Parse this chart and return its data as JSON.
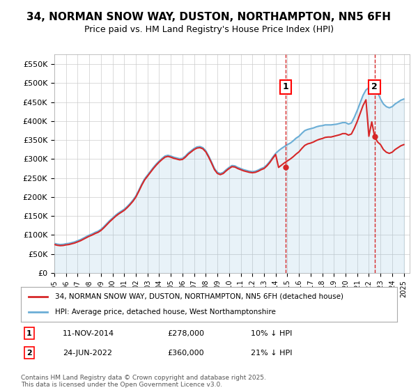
{
  "title": "34, NORMAN SNOW WAY, DUSTON, NORTHAMPTON, NN5 6FH",
  "subtitle": "Price paid vs. HM Land Registry's House Price Index (HPI)",
  "ylabel_ticks": [
    "£0",
    "£50K",
    "£100K",
    "£150K",
    "£200K",
    "£250K",
    "£300K",
    "£350K",
    "£400K",
    "£450K",
    "£500K",
    "£550K"
  ],
  "ylim": [
    0,
    575000
  ],
  "hpi_color": "#6baed6",
  "price_color": "#d62728",
  "grid_color": "#cccccc",
  "background_color": "#ffffff",
  "sale1_year": 2014.87,
  "sale1_price": 278000,
  "sale1_label": "1",
  "sale1_date": "11-NOV-2014",
  "sale1_pct": "10% ↓ HPI",
  "sale2_year": 2022.48,
  "sale2_price": 360000,
  "sale2_label": "2",
  "sale2_date": "24-JUN-2022",
  "sale2_pct": "21% ↓ HPI",
  "legend_line1": "34, NORMAN SNOW WAY, DUSTON, NORTHAMPTON, NN5 6FH (detached house)",
  "legend_line2": "HPI: Average price, detached house, West Northamptonshire",
  "footnote": "Contains HM Land Registry data © Crown copyright and database right 2025.\nThis data is licensed under the Open Government Licence v3.0.",
  "hpi_data": {
    "years": [
      1995.0,
      1995.25,
      1995.5,
      1995.75,
      1996.0,
      1996.25,
      1996.5,
      1996.75,
      1997.0,
      1997.25,
      1997.5,
      1997.75,
      1998.0,
      1998.25,
      1998.5,
      1998.75,
      1999.0,
      1999.25,
      1999.5,
      1999.75,
      2000.0,
      2000.25,
      2000.5,
      2000.75,
      2001.0,
      2001.25,
      2001.5,
      2001.75,
      2002.0,
      2002.25,
      2002.5,
      2002.75,
      2003.0,
      2003.25,
      2003.5,
      2003.75,
      2004.0,
      2004.25,
      2004.5,
      2004.75,
      2005.0,
      2005.25,
      2005.5,
      2005.75,
      2006.0,
      2006.25,
      2006.5,
      2006.75,
      2007.0,
      2007.25,
      2007.5,
      2007.75,
      2008.0,
      2008.25,
      2008.5,
      2008.75,
      2009.0,
      2009.25,
      2009.5,
      2009.75,
      2010.0,
      2010.25,
      2010.5,
      2010.75,
      2011.0,
      2011.25,
      2011.5,
      2011.75,
      2012.0,
      2012.25,
      2012.5,
      2012.75,
      2013.0,
      2013.25,
      2013.5,
      2013.75,
      2014.0,
      2014.25,
      2014.5,
      2014.75,
      2015.0,
      2015.25,
      2015.5,
      2015.75,
      2016.0,
      2016.25,
      2016.5,
      2016.75,
      2017.0,
      2017.25,
      2017.5,
      2017.75,
      2018.0,
      2018.25,
      2018.5,
      2018.75,
      2019.0,
      2019.25,
      2019.5,
      2019.75,
      2020.0,
      2020.25,
      2020.5,
      2020.75,
      2021.0,
      2021.25,
      2021.5,
      2021.75,
      2022.0,
      2022.25,
      2022.5,
      2022.75,
      2023.0,
      2023.25,
      2023.5,
      2023.75,
      2024.0,
      2024.25,
      2024.5,
      2024.75,
      2025.0
    ],
    "values": [
      78000,
      76000,
      75000,
      75500,
      77000,
      78000,
      80000,
      82000,
      85000,
      88000,
      92000,
      96000,
      100000,
      103000,
      107000,
      110000,
      115000,
      122000,
      130000,
      138000,
      145000,
      152000,
      158000,
      163000,
      168000,
      175000,
      183000,
      192000,
      203000,
      218000,
      234000,
      248000,
      258000,
      268000,
      278000,
      287000,
      295000,
      302000,
      308000,
      310000,
      308000,
      305000,
      303000,
      301000,
      302000,
      308000,
      316000,
      322000,
      328000,
      332000,
      333000,
      330000,
      322000,
      308000,
      292000,
      275000,
      265000,
      262000,
      265000,
      272000,
      278000,
      283000,
      282000,
      278000,
      275000,
      272000,
      270000,
      268000,
      267000,
      268000,
      271000,
      275000,
      278000,
      285000,
      294000,
      305000,
      315000,
      322000,
      328000,
      333000,
      338000,
      342000,
      348000,
      355000,
      360000,
      368000,
      375000,
      378000,
      380000,
      382000,
      385000,
      387000,
      388000,
      390000,
      390000,
      390000,
      391000,
      392000,
      394000,
      396000,
      396000,
      392000,
      395000,
      410000,
      428000,
      448000,
      468000,
      482000,
      488000,
      490000,
      488000,
      476000,
      458000,
      445000,
      438000,
      435000,
      438000,
      445000,
      450000,
      455000,
      458000
    ]
  },
  "price_data": {
    "years": [
      1995.0,
      1995.25,
      1995.5,
      1995.75,
      1996.0,
      1996.25,
      1996.5,
      1996.75,
      1997.0,
      1997.25,
      1997.5,
      1997.75,
      1998.0,
      1998.25,
      1998.5,
      1998.75,
      1999.0,
      1999.25,
      1999.5,
      1999.75,
      2000.0,
      2000.25,
      2000.5,
      2000.75,
      2001.0,
      2001.25,
      2001.5,
      2001.75,
      2002.0,
      2002.25,
      2002.5,
      2002.75,
      2003.0,
      2003.25,
      2003.5,
      2003.75,
      2004.0,
      2004.25,
      2004.5,
      2004.75,
      2005.0,
      2005.25,
      2005.5,
      2005.75,
      2006.0,
      2006.25,
      2006.5,
      2006.75,
      2007.0,
      2007.25,
      2007.5,
      2007.75,
      2008.0,
      2008.25,
      2008.5,
      2008.75,
      2009.0,
      2009.25,
      2009.5,
      2009.75,
      2010.0,
      2010.25,
      2010.5,
      2010.75,
      2011.0,
      2011.25,
      2011.5,
      2011.75,
      2012.0,
      2012.25,
      2012.5,
      2012.75,
      2013.0,
      2013.25,
      2013.5,
      2013.75,
      2014.0,
      2014.25,
      2014.5,
      2014.75,
      2015.0,
      2015.25,
      2015.5,
      2015.75,
      2016.0,
      2016.25,
      2016.5,
      2016.75,
      2017.0,
      2017.25,
      2017.5,
      2017.75,
      2018.0,
      2018.25,
      2018.5,
      2018.75,
      2019.0,
      2019.25,
      2019.5,
      2019.75,
      2020.0,
      2020.25,
      2020.5,
      2020.75,
      2021.0,
      2021.25,
      2021.5,
      2021.75,
      2022.0,
      2022.25,
      2022.5,
      2022.75,
      2023.0,
      2023.25,
      2023.5,
      2023.75,
      2024.0,
      2024.25,
      2024.5,
      2024.75,
      2025.0
    ],
    "values": [
      75000,
      73000,
      72000,
      72500,
      74000,
      75000,
      77000,
      79000,
      82000,
      85000,
      89000,
      93000,
      97000,
      100000,
      104000,
      107000,
      112000,
      119000,
      127000,
      135000,
      142000,
      149000,
      155000,
      160000,
      165000,
      172000,
      180000,
      189000,
      200000,
      215000,
      231000,
      245000,
      255000,
      265000,
      275000,
      284000,
      292000,
      299000,
      305000,
      307000,
      305000,
      302000,
      300000,
      298000,
      299000,
      305000,
      313000,
      319000,
      325000,
      329000,
      330000,
      327000,
      319000,
      305000,
      289000,
      272000,
      262000,
      259000,
      262000,
      269000,
      275000,
      280000,
      279000,
      275000,
      272000,
      269000,
      267000,
      265000,
      264000,
      265000,
      268000,
      272000,
      275000,
      282000,
      291000,
      302000,
      312000,
      278000,
      284000,
      290000,
      295000,
      300000,
      306000,
      313000,
      319000,
      328000,
      336000,
      340000,
      342000,
      345000,
      349000,
      352000,
      354000,
      357000,
      358000,
      358000,
      360000,
      362000,
      364000,
      367000,
      367000,
      363000,
      366000,
      381000,
      399000,
      420000,
      441000,
      456000,
      360000,
      398000,
      358000,
      345000,
      338000,
      325000,
      318000,
      315000,
      318000,
      325000,
      330000,
      335000,
      338000
    ]
  }
}
